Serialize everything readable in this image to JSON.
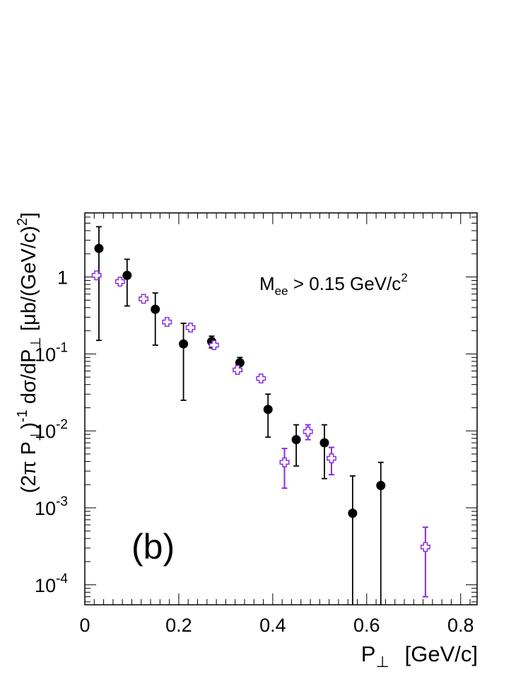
{
  "chart_data": {
    "type": "scatter",
    "panel_label": "(b)",
    "annotation": {
      "base": "M",
      "sub": "ee",
      "text": " > 0.15 GeV/c",
      "sup": "2"
    },
    "xlabel": {
      "base": "P",
      "sub": "⊥",
      "unit": "[GeV/c]"
    },
    "ylabel": {
      "p1": "(2π P",
      "sub1": "⊥",
      "p2": ")",
      "sup": "-1",
      "p3": " dσ/dP",
      "sub2": "⊥",
      "p4": " [μb/(GeV/c)",
      "sup2": "2",
      "p5": "]"
    },
    "xlim": [
      0,
      0.835
    ],
    "ylim": [
      5.5e-05,
      6.8
    ],
    "log_y": true,
    "x_ticks": [
      {
        "value": 0,
        "label": "0"
      },
      {
        "value": 0.2,
        "label": "0.2"
      },
      {
        "value": 0.4,
        "label": "0.4"
      },
      {
        "value": 0.6,
        "label": "0.6"
      },
      {
        "value": 0.8,
        "label": "0.8"
      }
    ],
    "y_ticks": [
      {
        "value": 0.0001,
        "base": "10",
        "exp": "-4"
      },
      {
        "value": 0.001,
        "base": "10",
        "exp": "-3"
      },
      {
        "value": 0.01,
        "base": "10",
        "exp": "-2"
      },
      {
        "value": 0.1,
        "base": "10",
        "exp": "-1"
      },
      {
        "value": 1,
        "base": "1",
        "exp": ""
      }
    ],
    "series": [
      {
        "marker": "filled-circle",
        "color": "#000000",
        "points": [
          {
            "x": 0.03,
            "y": 2.35,
            "lo": 0.15,
            "hi": 4.5
          },
          {
            "x": 0.09,
            "y": 1.05,
            "lo": 0.42,
            "hi": 1.7
          },
          {
            "x": 0.15,
            "y": 0.38,
            "lo": 0.13,
            "hi": 0.62
          },
          {
            "x": 0.21,
            "y": 0.135,
            "lo": 0.025,
            "hi": 0.25
          },
          {
            "x": 0.27,
            "y": 0.145,
            "lo": 0.12,
            "hi": 0.17
          },
          {
            "x": 0.33,
            "y": 0.077,
            "lo": 0.06,
            "hi": 0.09
          },
          {
            "x": 0.39,
            "y": 0.019,
            "lo": 0.0083,
            "hi": 0.03
          },
          {
            "x": 0.45,
            "y": 0.0077,
            "lo": 0.0035,
            "hi": 0.012
          },
          {
            "x": 0.51,
            "y": 0.007,
            "lo": 0.0024,
            "hi": 0.012
          },
          {
            "x": 0.57,
            "y": 0.00085,
            "lo": 4e-05,
            "hi": 0.0026
          },
          {
            "x": 0.63,
            "y": 0.00195,
            "lo": 4e-05,
            "hi": 0.0039
          }
        ]
      },
      {
        "marker": "open-cross",
        "color": "#8a2be2",
        "points": [
          {
            "x": 0.025,
            "y": 1.05,
            "lo": null,
            "hi": null
          },
          {
            "x": 0.075,
            "y": 0.87,
            "lo": null,
            "hi": null
          },
          {
            "x": 0.125,
            "y": 0.52,
            "lo": null,
            "hi": null
          },
          {
            "x": 0.175,
            "y": 0.26,
            "lo": null,
            "hi": null
          },
          {
            "x": 0.225,
            "y": 0.22,
            "lo": null,
            "hi": null
          },
          {
            "x": 0.275,
            "y": 0.13,
            "lo": null,
            "hi": null
          },
          {
            "x": 0.325,
            "y": 0.062,
            "lo": null,
            "hi": null
          },
          {
            "x": 0.375,
            "y": 0.048,
            "lo": null,
            "hi": null
          },
          {
            "x": 0.425,
            "y": 0.0039,
            "lo": 0.0018,
            "hi": 0.0059
          },
          {
            "x": 0.475,
            "y": 0.0098,
            "lo": 0.0077,
            "hi": 0.012
          },
          {
            "x": 0.525,
            "y": 0.0044,
            "lo": 0.0027,
            "hi": 0.0061
          },
          {
            "x": 0.725,
            "y": 0.00031,
            "lo": 7e-05,
            "hi": 0.00056
          }
        ]
      }
    ]
  }
}
